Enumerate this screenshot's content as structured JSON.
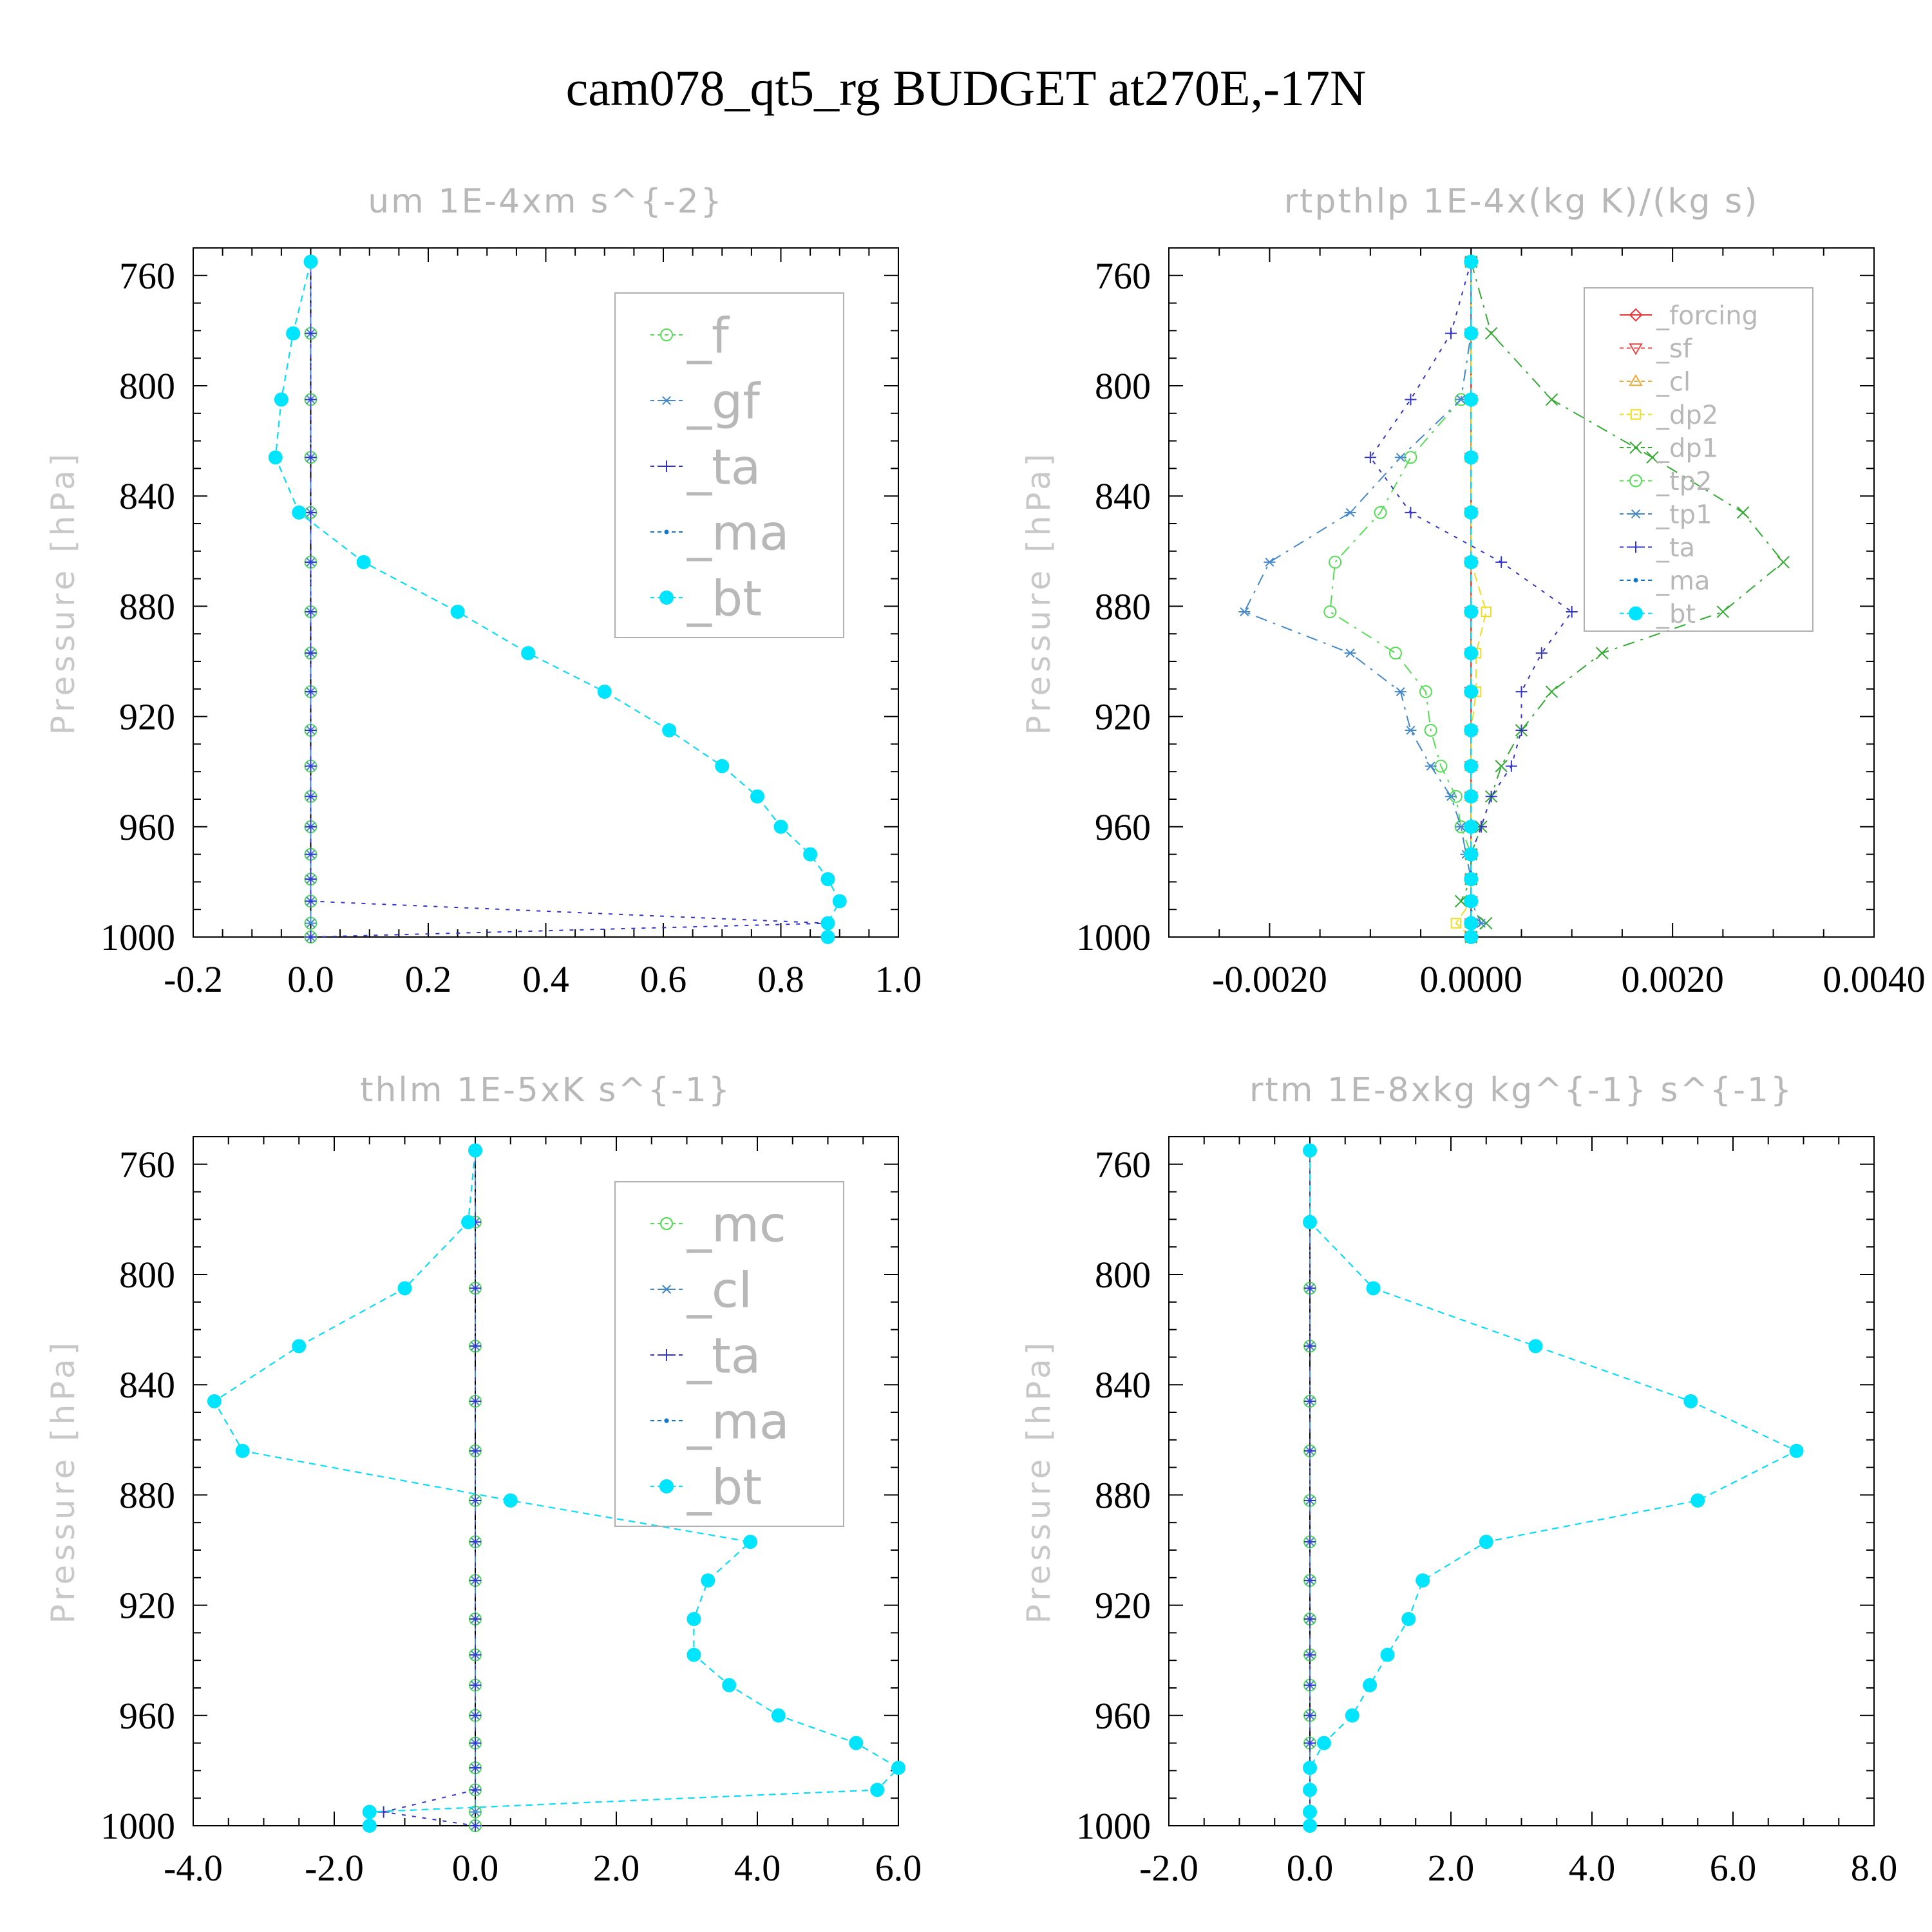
{
  "title": "cam078_qt5_rg  BUDGET at270E,-17N",
  "chart_data": [
    {
      "type": "line",
      "title": "um  1E-4xm s^{-2}",
      "ylabel": "Pressure [hPa]",
      "xlim": [
        -0.2,
        1.0
      ],
      "ylim": [
        750,
        1000
      ],
      "yreversed": true,
      "xticks": [
        "-0.2",
        "0.0",
        "0.2",
        "0.4",
        "0.6",
        "0.8",
        "1.0"
      ],
      "xtick_values": [
        -0.2,
        0.0,
        0.2,
        0.4,
        0.6,
        0.8,
        1.0
      ],
      "yticks": [
        "760",
        "800",
        "840",
        "880",
        "920",
        "960",
        "1000"
      ],
      "ytick_values": [
        760,
        800,
        840,
        880,
        920,
        960,
        1000
      ],
      "y": [
        755,
        781,
        805,
        826,
        846,
        864,
        882,
        897,
        911,
        925,
        938,
        949,
        960,
        970,
        979,
        987,
        995,
        1000
      ],
      "legend": {
        "font": "large",
        "entries": [
          "_f",
          "_gf",
          "_ta",
          "_ma",
          "_bt"
        ]
      },
      "series": [
        {
          "name": "_f",
          "color": "#55dd55",
          "dash": "18,10,4,10",
          "marker": "circle",
          "values": [
            0,
            0,
            0,
            0,
            0,
            0,
            0,
            0,
            0,
            0,
            0,
            0,
            0,
            0,
            0,
            0,
            0,
            0
          ]
        },
        {
          "name": "_gf",
          "color": "#4488cc",
          "dash": "18,10,4,10",
          "marker": "asterisk",
          "values": [
            0,
            0,
            0,
            0,
            0,
            0,
            0,
            0,
            0,
            0,
            0,
            0,
            0,
            0,
            0,
            0,
            0,
            0
          ]
        },
        {
          "name": "_ta",
          "color": "#3333cc",
          "dash": "6,10",
          "marker": "plus",
          "values": [
            0,
            0,
            0,
            0,
            0,
            0,
            0,
            0,
            0,
            0,
            0,
            0,
            0,
            0,
            0,
            0,
            0.88,
            0
          ]
        },
        {
          "name": "_ma",
          "color": "#1177cc",
          "dash": "10,8",
          "marker": "dot",
          "values": [
            0,
            -0.03,
            -0.05,
            -0.06,
            -0.02,
            0.09,
            0.25,
            0.37,
            0.5,
            0.61,
            0.7,
            0.76,
            0.8,
            0.85,
            0.88,
            0.9,
            0.88,
            0.88
          ]
        },
        {
          "name": "_bt",
          "color": "#00e5ff",
          "dash": "10,8",
          "marker": "filled",
          "values": [
            0,
            -0.03,
            -0.05,
            -0.06,
            -0.02,
            0.09,
            0.25,
            0.37,
            0.5,
            0.61,
            0.7,
            0.76,
            0.8,
            0.85,
            0.88,
            0.9,
            0.88,
            0.88
          ]
        }
      ]
    },
    {
      "type": "line",
      "title": "rtpthlp  1E-4x(kg K)/(kg s)",
      "ylabel": "Pressure [hPa]",
      "xlim": [
        -0.003,
        0.004
      ],
      "ylim": [
        750,
        1000
      ],
      "yreversed": true,
      "xticks": [
        "-0.0020",
        "0.0000",
        "0.0020",
        "0.0040"
      ],
      "xtick_values": [
        -0.002,
        0.0,
        0.002,
        0.004
      ],
      "yticks": [
        "760",
        "800",
        "840",
        "880",
        "920",
        "960",
        "1000"
      ],
      "ytick_values": [
        760,
        800,
        840,
        880,
        920,
        960,
        1000
      ],
      "y": [
        755,
        781,
        805,
        826,
        846,
        864,
        882,
        897,
        911,
        925,
        938,
        949,
        960,
        970,
        979,
        987,
        995,
        1000
      ],
      "legend": {
        "font": "small",
        "entries": [
          "_forcing",
          "_sf",
          "_cl",
          "_dp2",
          "_dp1",
          "_tp2",
          "_tp1",
          "_ta",
          "_ma",
          "_bt"
        ]
      },
      "series": [
        {
          "name": "_forcing",
          "color": "#ee3333",
          "dash": "none",
          "marker": "diamond",
          "values": [
            0,
            0,
            0,
            0,
            0,
            0,
            0,
            0,
            0,
            0,
            0,
            0,
            0,
            0,
            0,
            0,
            0,
            0
          ]
        },
        {
          "name": "_sf",
          "color": "#ee4444",
          "dash": "14,8",
          "marker": "tridown",
          "values": [
            0,
            0,
            0,
            0,
            0,
            0,
            0,
            0,
            0,
            0,
            0,
            0,
            0,
            0,
            0,
            0,
            0,
            0
          ]
        },
        {
          "name": "_cl",
          "color": "#eeaa33",
          "dash": "6,8",
          "marker": "triup",
          "values": [
            0,
            0,
            0,
            0,
            0,
            0,
            0,
            0,
            0,
            0,
            0,
            0,
            0,
            0,
            0,
            0,
            0,
            0
          ]
        },
        {
          "name": "_dp2",
          "color": "#eedd22",
          "dash": "14,8",
          "marker": "square",
          "values": [
            0,
            0,
            0,
            0,
            0,
            0,
            0.00015,
            5e-05,
            5e-05,
            0,
            0,
            0,
            0,
            0,
            0,
            0,
            -0.00015,
            0
          ]
        },
        {
          "name": "_dp1",
          "color": "#33aa33",
          "dash": "18,10,4,10",
          "marker": "cross",
          "values": [
            0,
            0.0002,
            0.0008,
            0.0018,
            0.0027,
            0.0031,
            0.0025,
            0.0013,
            0.0008,
            0.0005,
            0.0003,
            0.0002,
            0.0001,
            0,
            0,
            -0.0001,
            0.00015,
            0
          ]
        },
        {
          "name": "_tp2",
          "color": "#55dd55",
          "dash": "18,10,4,10",
          "marker": "circle",
          "values": [
            0,
            0,
            -0.0001,
            -0.0006,
            -0.0009,
            -0.00135,
            -0.0014,
            -0.00075,
            -0.00045,
            -0.0004,
            -0.0003,
            -0.00015,
            -0.0001,
            0,
            0,
            0,
            0,
            0
          ]
        },
        {
          "name": "_tp1",
          "color": "#4488cc",
          "dash": "18,10,4,10",
          "marker": "asterisk",
          "values": [
            0,
            0,
            -0.0001,
            -0.0007,
            -0.0012,
            -0.002,
            -0.00225,
            -0.0012,
            -0.0007,
            -0.0006,
            -0.0004,
            -0.0002,
            -0.0001,
            -5e-05,
            0,
            0,
            0.0001,
            0
          ]
        },
        {
          "name": "_ta",
          "color": "#3333cc",
          "dash": "6,10",
          "marker": "plus",
          "values": [
            0,
            -0.0002,
            -0.0006,
            -0.001,
            -0.0006,
            0.0003,
            0.001,
            0.0007,
            0.0005,
            0.0005,
            0.0004,
            0.0002,
            0.0001,
            0,
            0,
            0,
            0,
            0
          ]
        },
        {
          "name": "_ma",
          "color": "#1177cc",
          "dash": "10,8",
          "marker": "dot",
          "values": [
            0,
            0,
            0,
            0,
            0,
            0,
            0,
            0,
            0,
            0,
            0,
            0,
            0,
            0,
            0,
            0,
            0,
            0
          ]
        },
        {
          "name": "_bt",
          "color": "#00e5ff",
          "dash": "10,8",
          "marker": "filled",
          "values": [
            0,
            0,
            0,
            0,
            0,
            0,
            0,
            0,
            0,
            0,
            0,
            0,
            0,
            0,
            0,
            0,
            0,
            0
          ]
        }
      ]
    },
    {
      "type": "line",
      "title": "thlm  1E-5xK s^{-1}",
      "ylabel": "Pressure [hPa]",
      "xlim": [
        -4.0,
        6.0
      ],
      "ylim": [
        750,
        1000
      ],
      "yreversed": true,
      "xticks": [
        "-4.0",
        "-2.0",
        "0.0",
        "2.0",
        "4.0",
        "6.0"
      ],
      "xtick_values": [
        -4.0,
        -2.0,
        0.0,
        2.0,
        4.0,
        6.0
      ],
      "yticks": [
        "760",
        "800",
        "840",
        "880",
        "920",
        "960",
        "1000"
      ],
      "ytick_values": [
        760,
        800,
        840,
        880,
        920,
        960,
        1000
      ],
      "y": [
        755,
        781,
        805,
        826,
        846,
        864,
        882,
        897,
        911,
        925,
        938,
        949,
        960,
        970,
        979,
        987,
        995,
        1000
      ],
      "legend": {
        "font": "large",
        "entries": [
          "_mc",
          "_cl",
          "_ta",
          "_ma",
          "_bt"
        ]
      },
      "series": [
        {
          "name": "_mc",
          "color": "#55dd55",
          "dash": "18,10,4,10",
          "marker": "circle",
          "values": [
            0,
            0,
            0,
            0,
            0,
            0,
            0,
            0,
            0,
            0,
            0,
            0,
            0,
            0,
            0,
            0,
            0,
            0
          ]
        },
        {
          "name": "_cl",
          "color": "#4488cc",
          "dash": "18,10,4,10",
          "marker": "asterisk",
          "values": [
            0,
            0,
            0,
            0,
            0,
            0,
            0,
            0,
            0,
            0,
            0,
            0,
            0,
            0,
            0,
            0,
            0,
            0
          ]
        },
        {
          "name": "_ta",
          "color": "#3333cc",
          "dash": "6,10",
          "marker": "plus",
          "values": [
            0,
            0,
            0,
            0,
            0,
            0,
            0,
            0,
            0,
            0,
            0,
            0,
            0,
            0,
            0,
            0,
            -1.3,
            0
          ]
        },
        {
          "name": "_ma",
          "color": "#1177cc",
          "dash": "10,8",
          "marker": "dot",
          "values": [
            0,
            -0.1,
            -1.0,
            -2.5,
            -3.7,
            -3.3,
            0.5,
            3.9,
            3.3,
            3.1,
            3.1,
            3.6,
            4.3,
            5.4,
            6.0,
            5.7,
            -1.5,
            -1.5
          ]
        },
        {
          "name": "_bt",
          "color": "#00e5ff",
          "dash": "10,8",
          "marker": "filled",
          "values": [
            0,
            -0.1,
            -1.0,
            -2.5,
            -3.7,
            -3.3,
            0.5,
            3.9,
            3.3,
            3.1,
            3.1,
            3.6,
            4.3,
            5.4,
            6.0,
            5.7,
            -1.5,
            -1.5
          ]
        }
      ]
    },
    {
      "type": "line",
      "title": "rtm  1E-8xkg kg^{-1} s^{-1}",
      "ylabel": "Pressure [hPa]",
      "xlim": [
        -2.0,
        8.0
      ],
      "ylim": [
        750,
        1000
      ],
      "yreversed": true,
      "xticks": [
        "-2.0",
        "0.0",
        "2.0",
        "4.0",
        "6.0",
        "8.0"
      ],
      "xtick_values": [
        -2.0,
        0.0,
        2.0,
        4.0,
        6.0,
        8.0
      ],
      "yticks": [
        "760",
        "800",
        "840",
        "880",
        "920",
        "960",
        "1000"
      ],
      "ytick_values": [
        760,
        800,
        840,
        880,
        920,
        960,
        1000
      ],
      "y": [
        755,
        781,
        805,
        826,
        846,
        864,
        882,
        897,
        911,
        925,
        938,
        949,
        960,
        970,
        979,
        987,
        995,
        1000
      ],
      "legend": {
        "font": "large",
        "entries": [
          "_mc",
          "_cl",
          "_ta",
          "_ma",
          "_bt"
        ]
      },
      "series": [
        {
          "name": "_mc",
          "color": "#55dd55",
          "dash": "18,10,4,10",
          "marker": "circle",
          "values": [
            0,
            0,
            0,
            0,
            0,
            0,
            0,
            0,
            0,
            0,
            0,
            0,
            0,
            0,
            0,
            0,
            0,
            0
          ]
        },
        {
          "name": "_cl",
          "color": "#4488cc",
          "dash": "18,10,4,10",
          "marker": "asterisk",
          "values": [
            0,
            0,
            0,
            0,
            0,
            0,
            0,
            0,
            0,
            0,
            0,
            0,
            0,
            0,
            0,
            0,
            0,
            0
          ]
        },
        {
          "name": "_ta",
          "color": "#3333cc",
          "dash": "6,10",
          "marker": "plus",
          "values": [
            0,
            0,
            0,
            0,
            0,
            0,
            0,
            0,
            0,
            0,
            0,
            0,
            0,
            0,
            0,
            0,
            0,
            0
          ]
        },
        {
          "name": "_ma",
          "color": "#1177cc",
          "dash": "10,8",
          "marker": "dot",
          "values": [
            0,
            0,
            0.9,
            3.2,
            5.4,
            6.9,
            5.5,
            2.5,
            1.6,
            1.4,
            1.1,
            0.85,
            0.6,
            0.2,
            0,
            0,
            0,
            0
          ]
        },
        {
          "name": "_bt",
          "color": "#00e5ff",
          "dash": "10,8",
          "marker": "filled",
          "values": [
            0,
            0,
            0.9,
            3.2,
            5.4,
            6.9,
            5.5,
            2.5,
            1.6,
            1.4,
            1.1,
            0.85,
            0.6,
            0.2,
            0,
            0,
            0,
            0
          ]
        }
      ]
    }
  ]
}
